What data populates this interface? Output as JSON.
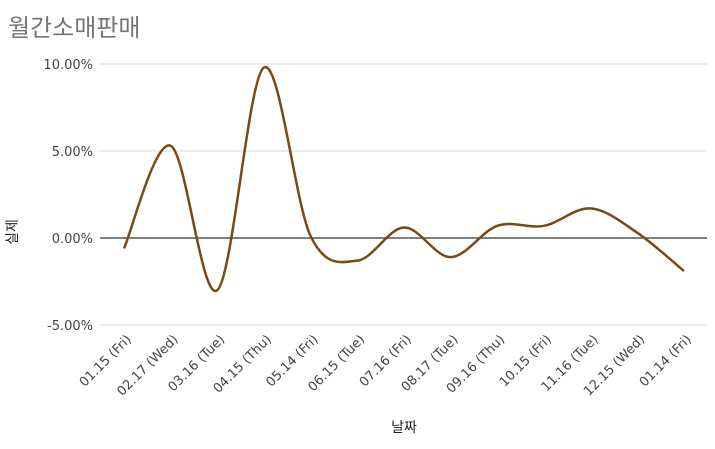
{
  "chart_data": {
    "type": "line",
    "title": "월간소매판매",
    "xlabel": "날짜",
    "ylabel": "실제",
    "categories": [
      "01.15 (Fri)",
      "02.17 (Wed)",
      "03.16 (Tue)",
      "04.15 (Thu)",
      "05.14 (Fri)",
      "06.15 (Tue)",
      "07.16 (Fri)",
      "08.17 (Tue)",
      "09.16 (Thu)",
      "10.15 (Fri)",
      "11.16 (Tue)",
      "12.15 (Wed)",
      "01.14 (Fri)"
    ],
    "values": [
      -0.6,
      5.3,
      -3.0,
      9.8,
      0.1,
      -1.3,
      0.6,
      -1.1,
      0.7,
      0.7,
      1.7,
      0.3,
      -1.9
    ],
    "y_ticks": [
      "10.00%",
      "5.00%",
      "0.00%",
      "-5.00%"
    ],
    "y_tick_values": [
      10,
      5,
      0,
      -5
    ],
    "ylim": [
      -5,
      10
    ],
    "grid": true,
    "legend": "none",
    "line_color": "#7b4a12"
  }
}
